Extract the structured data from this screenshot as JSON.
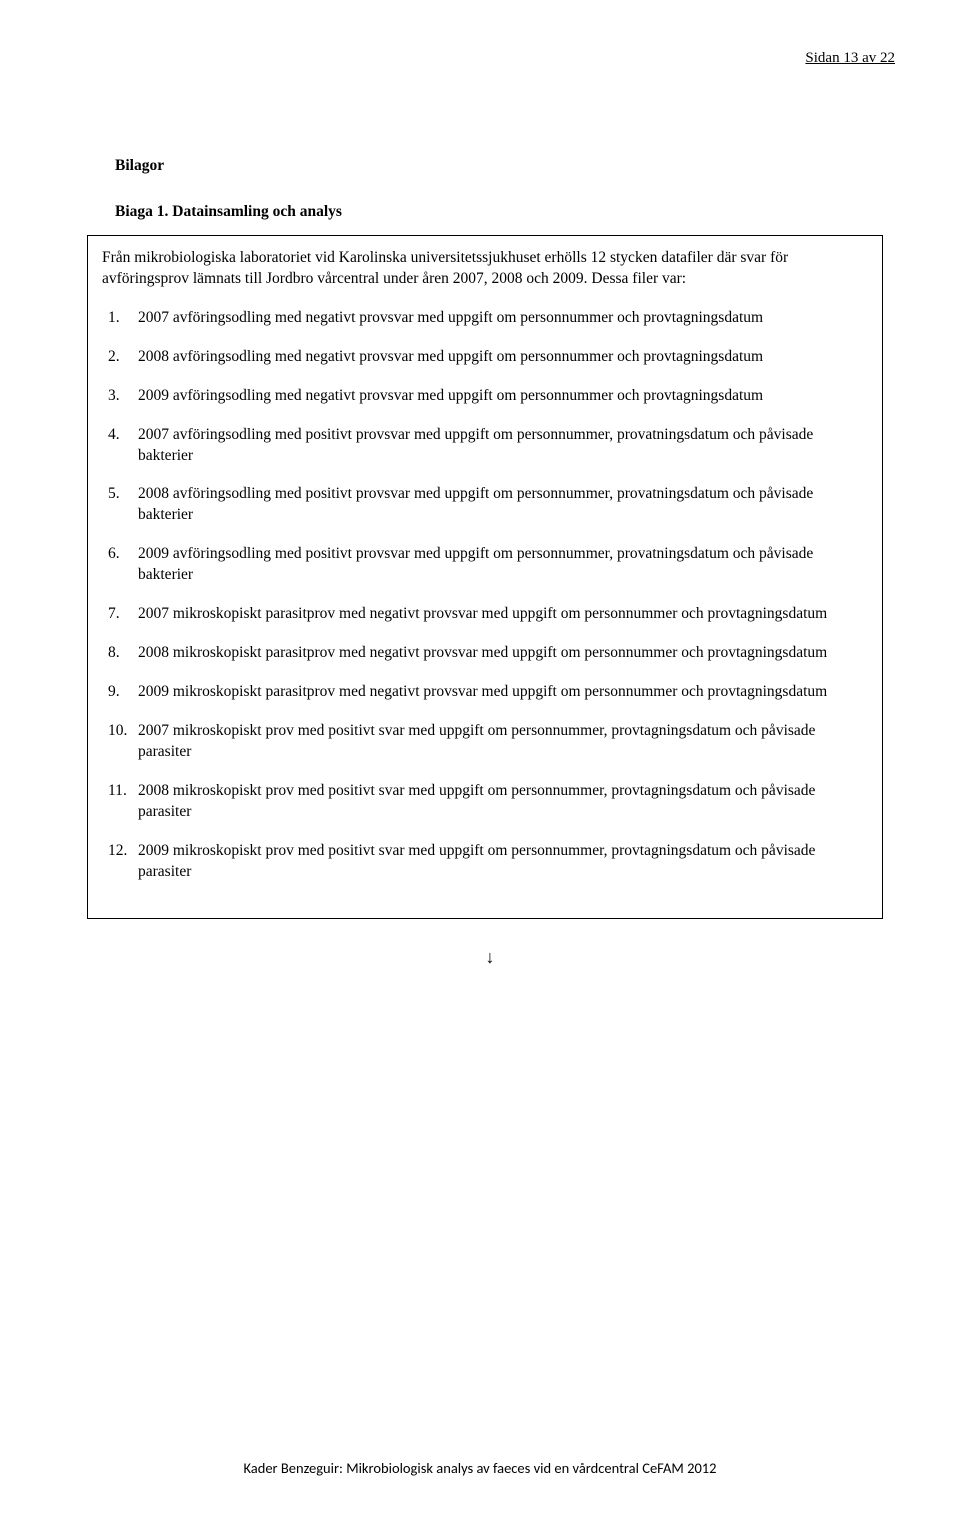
{
  "page_header": "Sidan 13 av 22",
  "section_heading": "Bilagor",
  "sub_heading": "Biaga 1. Datainsamling och analys",
  "intro": "Från mikrobiologiska laboratoriet vid Karolinska universitetssjukhuset erhölls 12 stycken datafiler där svar för avföringsprov lämnats till Jordbro vårcentral under åren 2007, 2008 och 2009. Dessa filer var:",
  "items": [
    "2007 avföringsodling med negativt provsvar med uppgift om personnummer och provtagningsdatum",
    "2008 avföringsodling med negativt provsvar med uppgift om personnummer och provtagningsdatum",
    "2009 avföringsodling med negativt provsvar med uppgift om personnummer och provtagningsdatum",
    "2007 avföringsodling med positivt provsvar med uppgift om personnummer, provatningsdatum och påvisade bakterier",
    "2008 avföringsodling med positivt provsvar med uppgift om personnummer, provatningsdatum och påvisade bakterier",
    "2009 avföringsodling med positivt provsvar med uppgift om personnummer, provatningsdatum och påvisade bakterier",
    "2007 mikroskopiskt parasitprov med negativt provsvar med uppgift om personnummer och provtagningsdatum",
    "2008 mikroskopiskt parasitprov med negativt provsvar med uppgift om personnummer och provtagningsdatum",
    "2009 mikroskopiskt parasitprov med negativt provsvar med uppgift om personnummer och provtagningsdatum",
    "2007 mikroskopiskt prov med positivt svar med uppgift om personnummer, provtagningsdatum och påvisade parasiter",
    "2008 mikroskopiskt prov med positivt svar med uppgift om personnummer, provtagningsdatum och påvisade parasiter",
    "2009 mikroskopiskt prov med positivt svar med uppgift om personnummer, provtagningsdatum och påvisade parasiter"
  ],
  "arrow": "↓",
  "footer": "Kader Benzeguir: Mikrobiologisk analys av faeces vid en vårdcentral  CeFAM 2012"
}
